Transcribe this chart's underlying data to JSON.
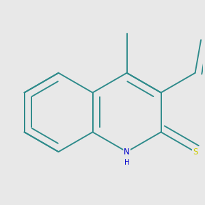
{
  "bg_color": "#e8e8e8",
  "bond_color": "#2e8b8b",
  "bond_width": 1.4,
  "atom_colors": {
    "N": "#0000cc",
    "S": "#cccc00"
  },
  "figsize": [
    3.0,
    3.0
  ],
  "dpi": 100
}
